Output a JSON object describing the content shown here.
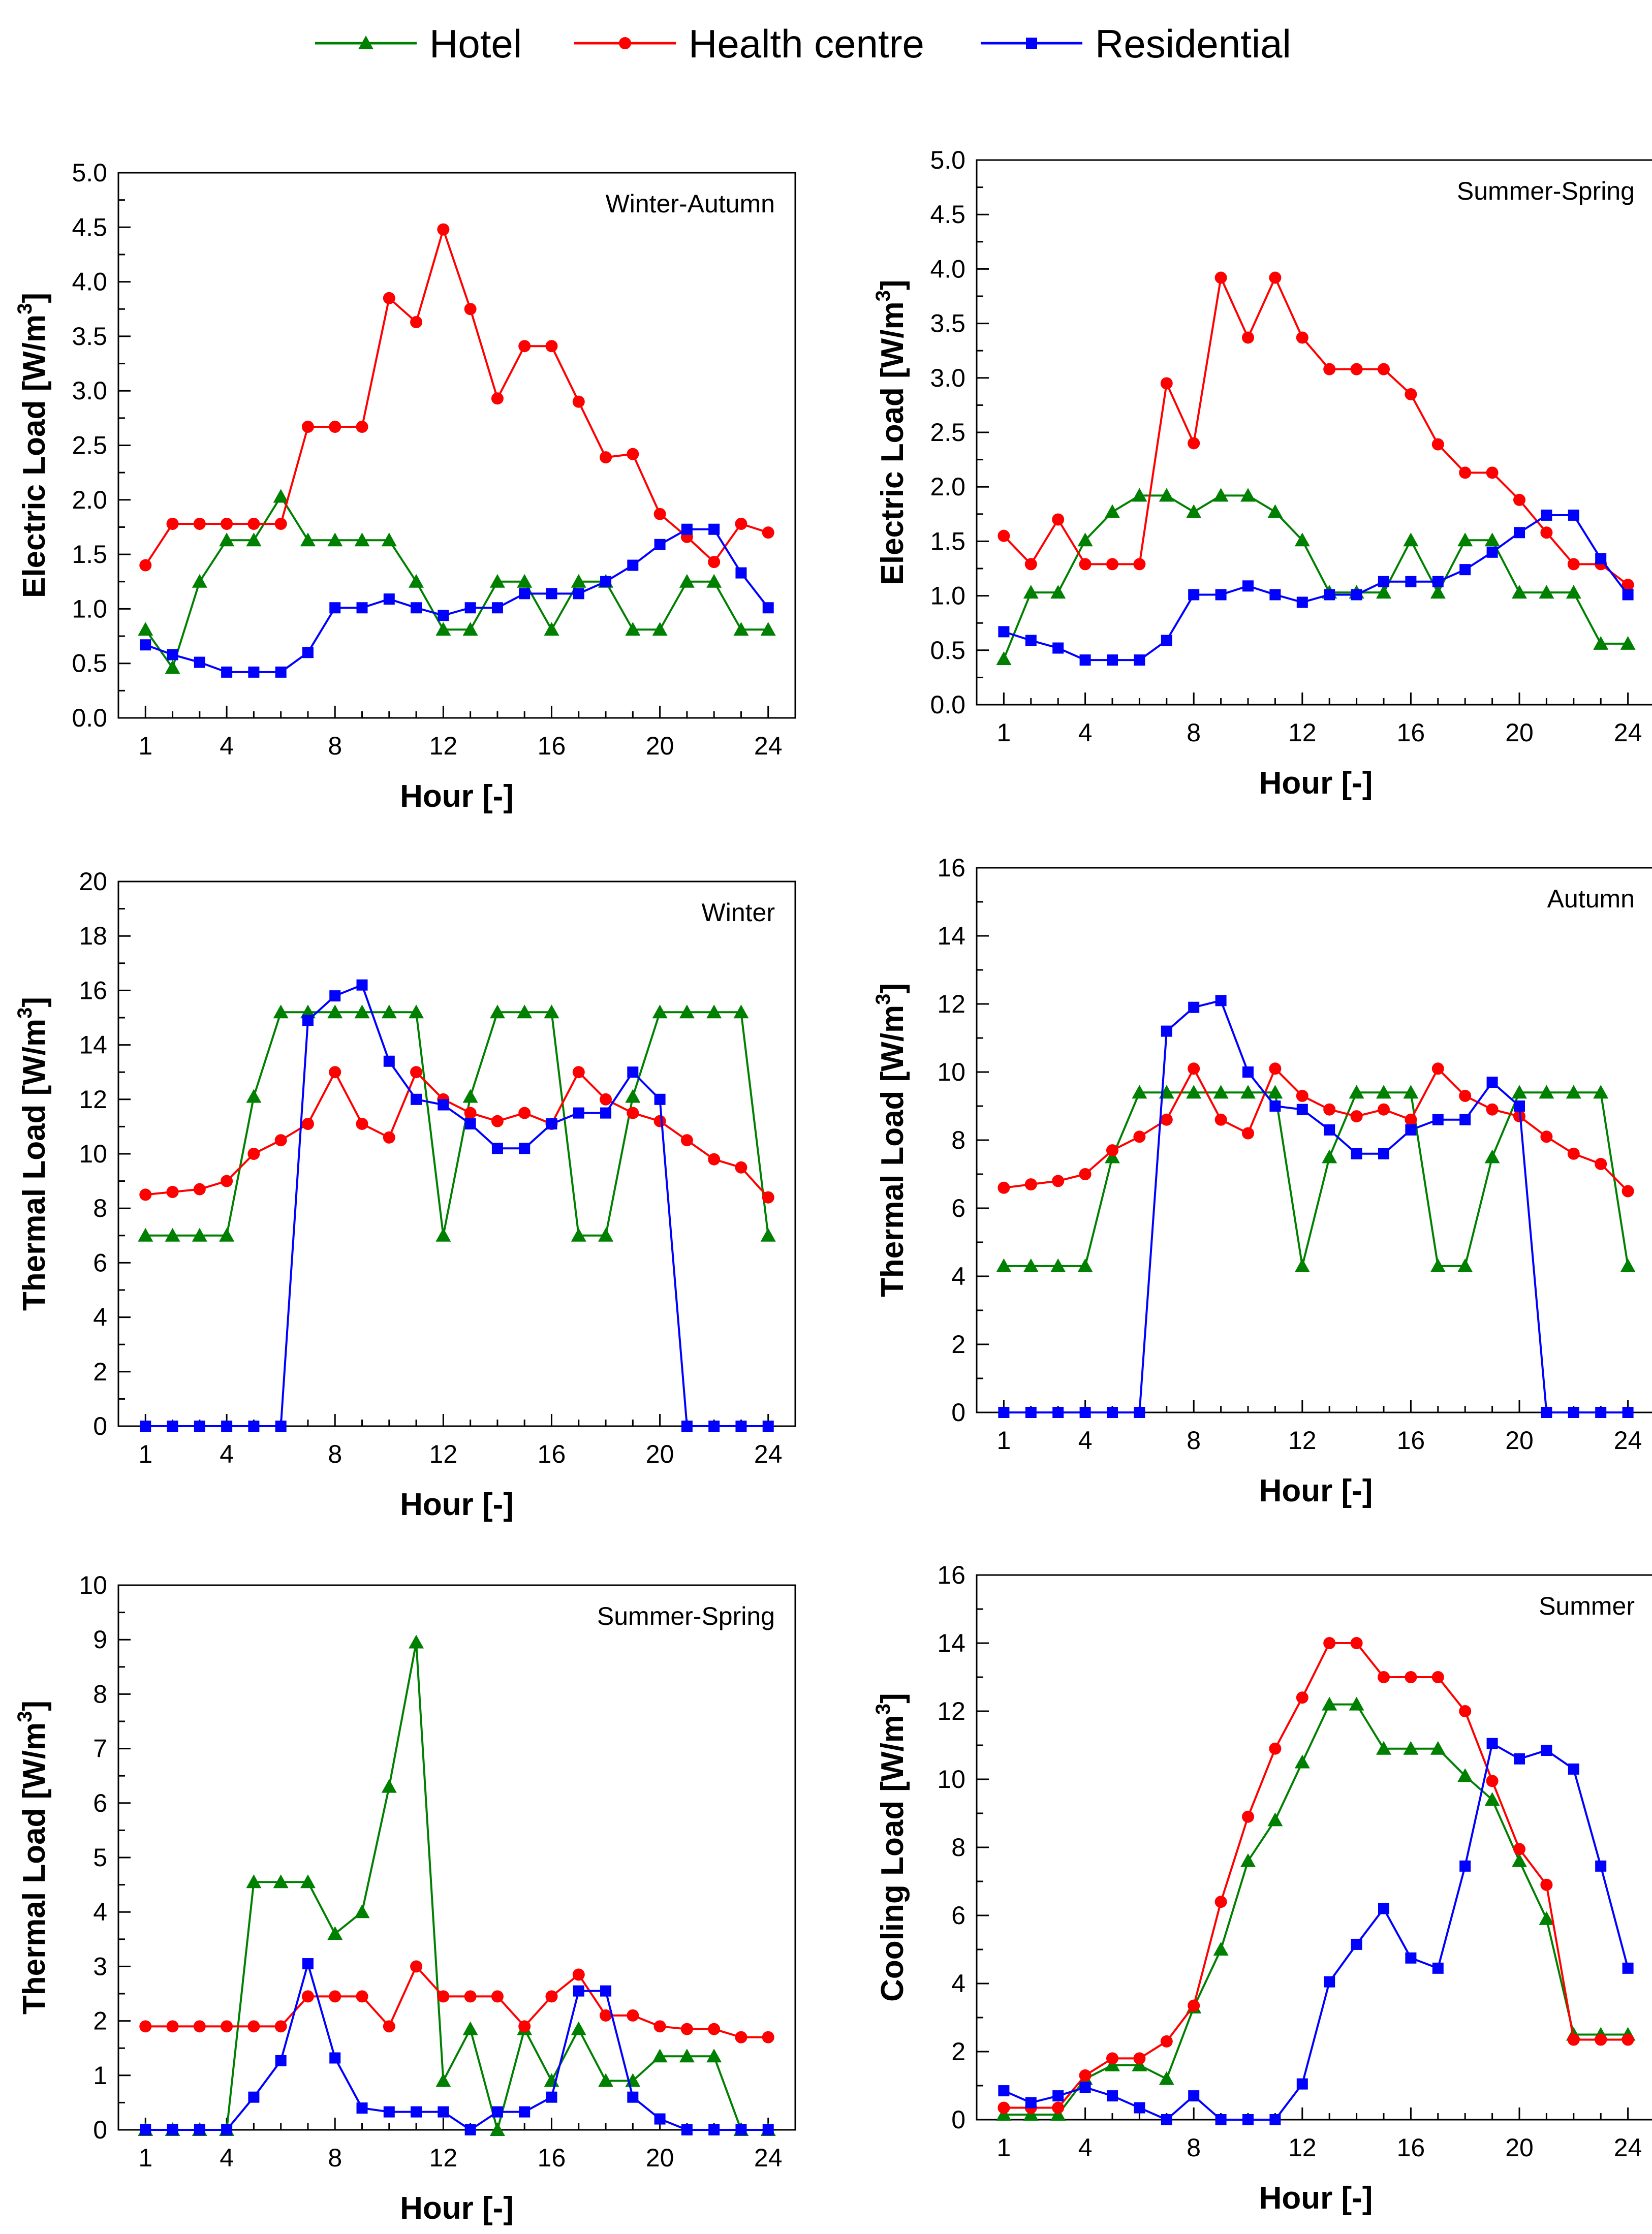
{
  "legend": {
    "position": "top-center",
    "entries": [
      {
        "name": "Hotel",
        "color": "#008000",
        "marker": "triangle"
      },
      {
        "name": "Health centre",
        "color": "#ff0000",
        "marker": "circle"
      },
      {
        "name": "Residential",
        "color": "#0000ff",
        "marker": "square"
      }
    ]
  },
  "chart_data": [
    {
      "type": "line",
      "title": "Winter-Autumn",
      "xlabel": "Hour [-]",
      "ylabel": "Electric Load [W/m",
      "ylabel_sup": "3",
      "ylabel_end": "]",
      "xlim": [
        0,
        25
      ],
      "ylim": [
        0,
        5
      ],
      "xticks": [
        1,
        4,
        8,
        12,
        16,
        20,
        24
      ],
      "yticks": [
        0.0,
        0.5,
        1.0,
        1.5,
        2.0,
        2.5,
        3.0,
        3.5,
        4.0,
        4.5,
        5.0
      ],
      "ytick_labels": [
        "0.0",
        "0.5",
        "1.0",
        "1.5",
        "2.0",
        "2.5",
        "3.0",
        "3.5",
        "4.0",
        "4.5",
        "5.0"
      ],
      "x": [
        1,
        2,
        3,
        4,
        5,
        6,
        7,
        8,
        9,
        10,
        11,
        12,
        13,
        14,
        15,
        16,
        17,
        18,
        19,
        20,
        21,
        22,
        23,
        24
      ],
      "series": [
        {
          "name": "Hotel",
          "values": [
            0.81,
            0.46,
            1.25,
            1.63,
            1.63,
            2.03,
            1.63,
            1.63,
            1.63,
            1.63,
            1.25,
            0.81,
            0.81,
            1.25,
            1.25,
            0.81,
            1.25,
            1.25,
            0.81,
            0.81,
            1.25,
            1.25,
            0.81,
            0.81
          ]
        },
        {
          "name": "Health centre",
          "values": [
            1.4,
            1.78,
            1.78,
            1.78,
            1.78,
            1.78,
            2.67,
            2.67,
            2.67,
            3.85,
            3.63,
            4.48,
            3.75,
            2.93,
            3.41,
            3.41,
            2.9,
            2.39,
            2.42,
            1.87,
            1.66,
            1.43,
            1.78,
            1.7
          ]
        },
        {
          "name": "Residential",
          "values": [
            0.67,
            0.58,
            0.51,
            0.42,
            0.42,
            0.42,
            0.6,
            1.01,
            1.01,
            1.09,
            1.01,
            0.94,
            1.01,
            1.01,
            1.14,
            1.14,
            1.14,
            1.25,
            1.4,
            1.59,
            1.73,
            1.73,
            1.33,
            1.01
          ]
        }
      ]
    },
    {
      "type": "line",
      "title": "Summer-Spring",
      "xlabel": "Hour [-]",
      "ylabel": "Electric Load [W/m",
      "ylabel_sup": "3",
      "ylabel_end": "]",
      "xlim": [
        0,
        25
      ],
      "ylim": [
        0,
        5
      ],
      "xticks": [
        1,
        4,
        8,
        12,
        16,
        20,
        24
      ],
      "yticks": [
        0.0,
        0.5,
        1.0,
        1.5,
        2.0,
        2.5,
        3.0,
        3.5,
        4.0,
        4.5,
        5.0
      ],
      "ytick_labels": [
        "0.0",
        "0.5",
        "1.0",
        "1.5",
        "2.0",
        "2.5",
        "3.0",
        "3.5",
        "4.0",
        "4.5",
        "5.0"
      ],
      "x": [
        1,
        2,
        3,
        4,
        5,
        6,
        7,
        8,
        9,
        10,
        11,
        12,
        13,
        14,
        15,
        16,
        17,
        18,
        19,
        20,
        21,
        22,
        23,
        24
      ],
      "series": [
        {
          "name": "Hotel",
          "values": [
            0.42,
            1.03,
            1.03,
            1.51,
            1.77,
            1.92,
            1.92,
            1.77,
            1.92,
            1.92,
            1.77,
            1.51,
            1.03,
            1.03,
            1.03,
            1.51,
            1.03,
            1.51,
            1.51,
            1.03,
            1.03,
            1.03,
            0.56,
            0.56
          ]
        },
        {
          "name": "Health centre",
          "values": [
            1.55,
            1.29,
            1.7,
            1.29,
            1.29,
            1.29,
            2.95,
            2.4,
            3.92,
            3.37,
            3.92,
            3.37,
            3.08,
            3.08,
            3.08,
            2.85,
            2.39,
            2.13,
            2.13,
            1.88,
            1.58,
            1.29,
            1.29,
            1.1
          ]
        },
        {
          "name": "Residential",
          "values": [
            0.67,
            0.59,
            0.52,
            0.41,
            0.41,
            0.41,
            0.59,
            1.01,
            1.01,
            1.09,
            1.01,
            0.94,
            1.01,
            1.01,
            1.13,
            1.13,
            1.13,
            1.24,
            1.4,
            1.58,
            1.74,
            1.74,
            1.34,
            1.01
          ]
        }
      ]
    },
    {
      "type": "line",
      "title": "Winter",
      "xlabel": "Hour [-]",
      "ylabel": "Thermal Load [W/m",
      "ylabel_sup": "3",
      "ylabel_end": "]",
      "xlim": [
        0,
        25
      ],
      "ylim": [
        0,
        20
      ],
      "xticks": [
        1,
        4,
        8,
        12,
        16,
        20,
        24
      ],
      "yticks": [
        0,
        2,
        4,
        6,
        8,
        10,
        12,
        14,
        16,
        18,
        20
      ],
      "ytick_labels": [
        "0",
        "2",
        "4",
        "6",
        "8",
        "10",
        "12",
        "14",
        "16",
        "18",
        "20"
      ],
      "x": [
        1,
        2,
        3,
        4,
        5,
        6,
        7,
        8,
        9,
        10,
        11,
        12,
        13,
        14,
        15,
        16,
        17,
        18,
        19,
        20,
        21,
        22,
        23,
        24
      ],
      "series": [
        {
          "name": "Hotel",
          "values": [
            7.0,
            7.0,
            7.0,
            7.0,
            12.1,
            15.2,
            15.2,
            15.2,
            15.2,
            15.2,
            15.2,
            7.0,
            12.1,
            15.2,
            15.2,
            15.2,
            7.0,
            7.0,
            12.1,
            15.2,
            15.2,
            15.2,
            15.2,
            7.0
          ]
        },
        {
          "name": "Health centre",
          "values": [
            8.5,
            8.6,
            8.7,
            9.0,
            10.0,
            10.5,
            11.1,
            13.0,
            11.1,
            10.6,
            13.0,
            12.0,
            11.5,
            11.2,
            11.5,
            11.1,
            13.0,
            12.0,
            11.5,
            11.2,
            10.5,
            9.8,
            9.5,
            8.4
          ]
        },
        {
          "name": "Residential",
          "values": [
            0,
            0,
            0,
            0,
            0,
            0,
            14.9,
            15.8,
            16.2,
            13.4,
            12.0,
            11.8,
            11.1,
            10.2,
            10.2,
            11.1,
            11.5,
            11.5,
            13.0,
            12.0,
            0,
            0,
            0,
            0
          ]
        }
      ]
    },
    {
      "type": "line",
      "title": "Autumn",
      "xlabel": "Hour [-]",
      "ylabel": "Thermal Load [W/m",
      "ylabel_sup": "3",
      "ylabel_end": "]",
      "xlim": [
        0,
        25
      ],
      "ylim": [
        0,
        16
      ],
      "xticks": [
        1,
        4,
        8,
        12,
        16,
        20,
        24
      ],
      "yticks": [
        0,
        2,
        4,
        6,
        8,
        10,
        12,
        14,
        16
      ],
      "ytick_labels": [
        "0",
        "2",
        "4",
        "6",
        "8",
        "10",
        "12",
        "14",
        "16"
      ],
      "x": [
        1,
        2,
        3,
        4,
        5,
        6,
        7,
        8,
        9,
        10,
        11,
        12,
        13,
        14,
        15,
        16,
        17,
        18,
        19,
        20,
        21,
        22,
        23,
        24
      ],
      "series": [
        {
          "name": "Hotel",
          "values": [
            4.3,
            4.3,
            4.3,
            4.3,
            7.5,
            9.4,
            9.4,
            9.4,
            9.4,
            9.4,
            9.4,
            4.3,
            7.5,
            9.4,
            9.4,
            9.4,
            4.3,
            4.3,
            7.5,
            9.4,
            9.4,
            9.4,
            9.4,
            4.3
          ]
        },
        {
          "name": "Health centre",
          "values": [
            6.6,
            6.7,
            6.8,
            7.0,
            7.7,
            8.1,
            8.6,
            10.1,
            8.6,
            8.2,
            10.1,
            9.3,
            8.9,
            8.7,
            8.9,
            8.6,
            10.1,
            9.3,
            8.9,
            8.7,
            8.1,
            7.6,
            7.3,
            6.5
          ]
        },
        {
          "name": "Residential",
          "values": [
            0,
            0,
            0,
            0,
            0,
            0,
            11.2,
            11.9,
            12.1,
            10.0,
            9.0,
            8.9,
            8.3,
            7.6,
            7.6,
            8.3,
            8.6,
            8.6,
            9.7,
            9.0,
            0,
            0,
            0,
            0
          ]
        }
      ]
    },
    {
      "type": "line",
      "title": "Summer-Spring",
      "xlabel": "Hour [-]",
      "ylabel": "Thermal Load [W/m",
      "ylabel_sup": "3",
      "ylabel_end": "]",
      "xlim": [
        0,
        25
      ],
      "ylim": [
        0,
        10
      ],
      "xticks": [
        1,
        4,
        8,
        12,
        16,
        20,
        24
      ],
      "yticks": [
        0,
        1,
        2,
        3,
        4,
        5,
        6,
        7,
        8,
        9,
        10
      ],
      "ytick_labels": [
        "0",
        "1",
        "2",
        "3",
        "4",
        "5",
        "6",
        "7",
        "8",
        "9",
        "10"
      ],
      "x": [
        1,
        2,
        3,
        4,
        5,
        6,
        7,
        8,
        9,
        10,
        11,
        12,
        13,
        14,
        15,
        16,
        17,
        18,
        19,
        20,
        21,
        22,
        23,
        24
      ],
      "series": [
        {
          "name": "Hotel",
          "values": [
            0,
            0,
            0,
            0,
            4.55,
            4.55,
            4.55,
            3.6,
            4.0,
            6.3,
            8.95,
            0.9,
            1.85,
            0,
            1.85,
            0.9,
            1.85,
            0.9,
            0.9,
            1.35,
            1.35,
            1.35,
            0,
            0
          ]
        },
        {
          "name": "Health centre",
          "values": [
            1.9,
            1.9,
            1.9,
            1.9,
            1.9,
            1.9,
            2.45,
            2.45,
            2.45,
            1.9,
            3.0,
            2.45,
            2.45,
            2.45,
            1.9,
            2.45,
            2.85,
            2.1,
            2.1,
            1.9,
            1.85,
            1.85,
            1.7,
            1.7
          ]
        },
        {
          "name": "Residential",
          "values": [
            0,
            0,
            0,
            0,
            0.6,
            1.27,
            3.05,
            1.32,
            0.4,
            0.33,
            0.33,
            0.33,
            0,
            0.33,
            0.33,
            0.6,
            2.55,
            2.55,
            0.6,
            0.2,
            0,
            0,
            0,
            0
          ]
        }
      ]
    },
    {
      "type": "line",
      "title": "Summer",
      "xlabel": "Hour [-]",
      "ylabel": "Cooling Load [W/m",
      "ylabel_sup": "3",
      "ylabel_end": "]",
      "xlim": [
        0,
        25
      ],
      "ylim": [
        0,
        16
      ],
      "xticks": [
        1,
        4,
        8,
        12,
        16,
        20,
        24
      ],
      "yticks": [
        0,
        2,
        4,
        6,
        8,
        10,
        12,
        14,
        16
      ],
      "ytick_labels": [
        "0",
        "2",
        "4",
        "6",
        "8",
        "10",
        "12",
        "14",
        "16"
      ],
      "x": [
        1,
        2,
        3,
        4,
        5,
        6,
        7,
        8,
        9,
        10,
        11,
        12,
        13,
        14,
        15,
        16,
        17,
        18,
        19,
        20,
        21,
        22,
        23,
        24
      ],
      "series": [
        {
          "name": "Hotel",
          "values": [
            0.15,
            0.15,
            0.15,
            1.2,
            1.6,
            1.6,
            1.2,
            3.3,
            5.0,
            7.6,
            8.8,
            10.5,
            12.2,
            12.2,
            10.9,
            10.9,
            10.9,
            10.1,
            9.4,
            7.6,
            5.9,
            2.5,
            2.5,
            2.5
          ]
        },
        {
          "name": "Health centre",
          "values": [
            0.35,
            0.35,
            0.35,
            1.3,
            1.8,
            1.8,
            2.3,
            3.35,
            6.4,
            8.9,
            10.9,
            12.4,
            14.0,
            14.0,
            13.0,
            13.0,
            13.0,
            12.0,
            9.95,
            7.95,
            6.9,
            2.35,
            2.35,
            2.35
          ]
        },
        {
          "name": "Residential",
          "values": [
            0.85,
            0.5,
            0.7,
            0.95,
            0.7,
            0.35,
            0,
            0.7,
            0,
            0,
            0,
            1.05,
            4.05,
            5.15,
            6.2,
            4.75,
            4.45,
            7.45,
            11.05,
            10.6,
            10.85,
            10.3,
            7.45,
            4.45
          ]
        }
      ]
    }
  ]
}
